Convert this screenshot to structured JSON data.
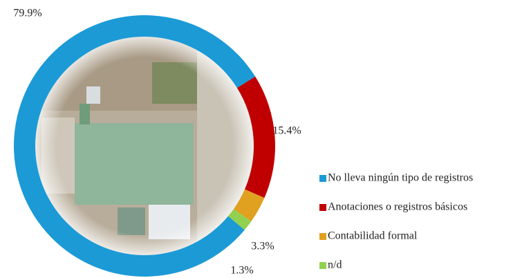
{
  "chart_data": {
    "type": "donut",
    "categories": [
      "No lleva ningún tipo de registros",
      "Anotaciones o registros básicos",
      "Contabilidad formal",
      "n/d"
    ],
    "values": [
      79.9,
      15.4,
      3.3,
      1.3
    ],
    "value_labels": [
      "79.9%",
      "15.4%",
      "3.3%",
      "1.3%"
    ],
    "colors": [
      "#1b9ad6",
      "#c00000",
      "#e0a020",
      "#92d050"
    ],
    "legend": "right"
  }
}
